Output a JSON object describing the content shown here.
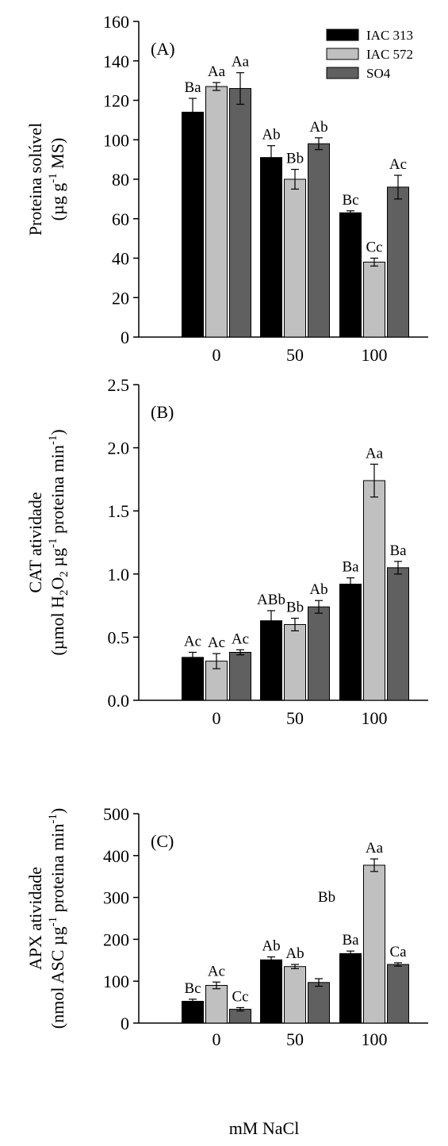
{
  "x_title": "mM NaCl",
  "legend": [
    {
      "label": "IAC 313",
      "color": "#000000"
    },
    {
      "label": "IAC 572",
      "color": "#c0c0c0"
    },
    {
      "label": "SO4",
      "color": "#606060"
    }
  ],
  "chart_data": [
    {
      "type": "bar",
      "panel_label": "(A)",
      "ylabel": {
        "pre": "Proteina solúvel",
        "line2": "(µg g",
        "sup": "-1",
        "post": " MS)"
      },
      "categories": [
        "0",
        "50",
        "100"
      ],
      "ylim": [
        0,
        160
      ],
      "yticks": [
        "0",
        "20",
        "40",
        "60",
        "80",
        "100",
        "120",
        "140",
        "160"
      ],
      "legend_placement": "top-right",
      "series": [
        {
          "name": "IAC 313",
          "values": [
            114,
            91,
            63
          ],
          "errors": [
            7,
            6,
            1
          ],
          "labels": [
            "Ba",
            "Ab",
            "Bc"
          ]
        },
        {
          "name": "IAC 572",
          "values": [
            127,
            80,
            38
          ],
          "errors": [
            2,
            5,
            2
          ],
          "labels": [
            "Aa",
            "Bb",
            "Cc"
          ]
        },
        {
          "name": "SO4",
          "values": [
            126,
            98,
            76
          ],
          "errors": [
            8,
            3,
            6
          ],
          "labels": [
            "Aa",
            "Ab",
            "Ac"
          ]
        }
      ]
    },
    {
      "type": "bar",
      "panel_label": "(B)",
      "ylabel": {
        "pre": "CAT atividade",
        "line2": "(µmol H",
        "sub": "2",
        "mid": "O",
        "sub2": "2",
        "mid2": " µg",
        "sup": "-1",
        "post": " proteina min",
        "sup2": "-1",
        "post2": ")"
      },
      "categories": [
        "0",
        "50",
        "100"
      ],
      "ylim": [
        0,
        2.5
      ],
      "yticks": [
        "0.0",
        "0.5",
        "1.0",
        "1.5",
        "2.0",
        "2.5"
      ],
      "series": [
        {
          "name": "IAC 313",
          "values": [
            0.34,
            0.63,
            0.92
          ],
          "errors": [
            0.04,
            0.08,
            0.05
          ],
          "labels": [
            "Ac",
            "ABb",
            "Ba"
          ]
        },
        {
          "name": "IAC 572",
          "values": [
            0.31,
            0.6,
            1.74
          ],
          "errors": [
            0.06,
            0.05,
            0.13
          ],
          "labels": [
            "Ac",
            "Bb",
            "Aa"
          ]
        },
        {
          "name": "SO4",
          "values": [
            0.38,
            0.74,
            1.05
          ],
          "errors": [
            0.02,
            0.05,
            0.05
          ],
          "labels": [
            "Ac",
            "Ab",
            "Ba"
          ]
        }
      ]
    },
    {
      "type": "bar",
      "panel_label": "(C)",
      "ylabel": {
        "pre": "APX atividade",
        "line2": "(nmol ASC µg",
        "sup": "-1",
        "post": " proteina min",
        "sup2": "-1",
        "post2": ")"
      },
      "categories": [
        "0",
        "50",
        "100"
      ],
      "ylim": [
        0,
        500
      ],
      "yticks": [
        "0",
        "100",
        "200",
        "300",
        "400",
        "500"
      ],
      "series": [
        {
          "name": "IAC 313",
          "values": [
            52,
            151,
            166
          ],
          "errors": [
            5,
            7,
            6
          ],
          "labels": [
            "Bc",
            "Ab",
            "Ba"
          ]
        },
        {
          "name": "IAC 572",
          "values": [
            90,
            135,
            377
          ],
          "errors": [
            8,
            5,
            15
          ],
          "labels": [
            "Ac",
            "Ab",
            "Aa"
          ]
        },
        {
          "name": "SO4",
          "values": [
            33,
            97,
            140
          ],
          "errors": [
            4,
            9,
            4
          ],
          "labels": [
            "Cc",
            "",
            "Ca"
          ]
        }
      ],
      "annotations": [
        {
          "text": "Bb",
          "x_category": "100",
          "y": 290
        }
      ]
    }
  ]
}
